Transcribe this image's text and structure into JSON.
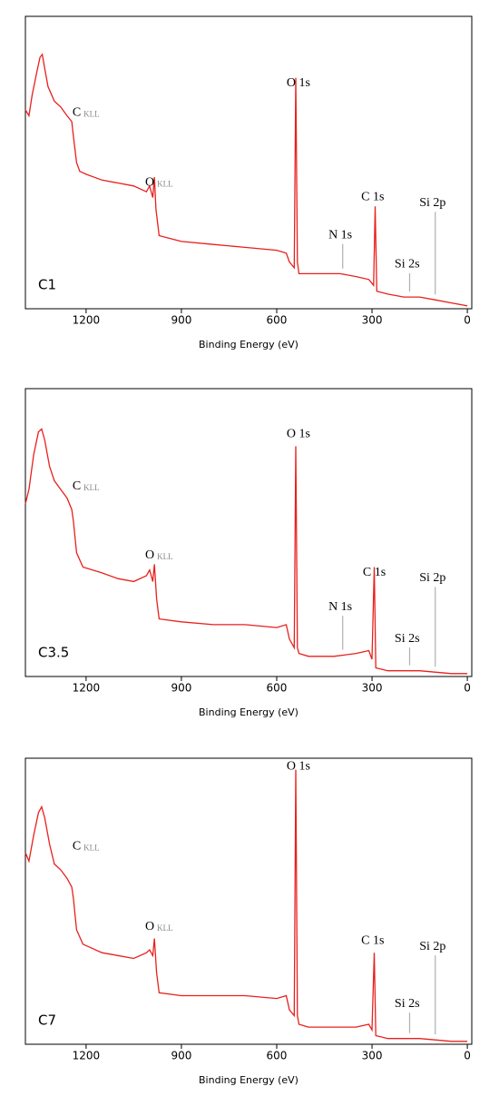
{
  "chart_data": [
    {
      "type": "line",
      "sample": "C1",
      "xlabel": "Binding Energy (eV)",
      "xlim": [
        1391,
        -14
      ],
      "ylim": [
        0,
        100
      ],
      "xticks": [
        1200,
        900,
        600,
        300,
        0
      ],
      "color": "#e8201c",
      "x": [
        1391,
        1380,
        1370,
        1355,
        1345,
        1338,
        1330,
        1320,
        1300,
        1280,
        1260,
        1245,
        1240,
        1230,
        1220,
        1200,
        1150,
        1100,
        1050,
        1010,
        1000,
        990,
        985,
        980,
        970,
        900,
        800,
        700,
        600,
        570,
        560,
        545,
        540,
        535,
        530,
        500,
        420,
        400,
        350,
        310,
        295,
        290,
        285,
        250,
        200,
        150,
        100,
        50,
        0
      ],
      "values": [
        68,
        66,
        73,
        81,
        86,
        87,
        82,
        76,
        71,
        69,
        66,
        64,
        59,
        50,
        47,
        46,
        44,
        43,
        42,
        40,
        42,
        38,
        45,
        34,
        25,
        23,
        22,
        21,
        20,
        19,
        16,
        14,
        79,
        16,
        12,
        12,
        12,
        12,
        11,
        10,
        8,
        35,
        6,
        5,
        4,
        4,
        3,
        2,
        1
      ],
      "annotations": [
        {
          "text": "O 1s",
          "x": 569,
          "y": 77
        },
        {
          "text": "C",
          "sub": "KLL",
          "x": 1243,
          "y": 67
        },
        {
          "text": "O",
          "sub": "KLL",
          "x": 1014,
          "y": 43
        },
        {
          "text": "C 1s",
          "x": 334,
          "y": 38
        },
        {
          "text": "N 1s",
          "x": 437,
          "y": 25,
          "leader": true
        },
        {
          "text": "Si 2s",
          "x": 229,
          "y": 15,
          "leader": true
        },
        {
          "text": "Si 2p",
          "x": 151,
          "y": 36,
          "leader": true
        }
      ]
    },
    {
      "type": "line",
      "sample": "C3.5",
      "xlabel": "Binding Energy (eV)",
      "xlim": [
        1391,
        -14
      ],
      "ylim": [
        0,
        100
      ],
      "xticks": [
        1200,
        900,
        600,
        300,
        0
      ],
      "color": "#e8201c",
      "x": [
        1391,
        1380,
        1365,
        1350,
        1340,
        1330,
        1315,
        1300,
        1280,
        1260,
        1245,
        1240,
        1230,
        1210,
        1150,
        1100,
        1050,
        1010,
        1000,
        990,
        985,
        978,
        970,
        900,
        800,
        700,
        600,
        570,
        560,
        545,
        540,
        535,
        530,
        500,
        420,
        350,
        310,
        300,
        293,
        288,
        250,
        150,
        50,
        0
      ],
      "values": [
        60,
        65,
        77,
        85,
        86,
        82,
        73,
        68,
        65,
        62,
        58,
        54,
        43,
        38,
        36,
        34,
        33,
        35,
        37,
        33,
        39,
        27,
        20,
        19,
        18,
        18,
        17,
        18,
        13,
        10,
        80,
        10,
        8,
        7,
        7,
        8,
        9,
        6,
        38,
        3,
        2,
        2,
        1,
        1
      ],
      "annotations": [
        {
          "text": "O 1s",
          "x": 569,
          "y": 84
        },
        {
          "text": "C",
          "sub": "KLL",
          "x": 1243,
          "y": 66
        },
        {
          "text": "O",
          "sub": "KLL",
          "x": 1014,
          "y": 42
        },
        {
          "text": "C 1s",
          "x": 329,
          "y": 36
        },
        {
          "text": "N 1s",
          "x": 437,
          "y": 24,
          "leader": true
        },
        {
          "text": "Si 2s",
          "x": 229,
          "y": 13,
          "leader": true
        },
        {
          "text": "Si 2p",
          "x": 151,
          "y": 34,
          "leader": true
        }
      ]
    },
    {
      "type": "line",
      "sample": "C7",
      "xlabel": "Binding Energy (eV)",
      "xlim": [
        1391,
        -14
      ],
      "ylim": [
        0,
        100
      ],
      "xticks": [
        1200,
        900,
        600,
        300,
        0
      ],
      "color": "#e8201c",
      "x": [
        1391,
        1380,
        1365,
        1350,
        1340,
        1330,
        1315,
        1300,
        1280,
        1260,
        1245,
        1240,
        1230,
        1210,
        1150,
        1100,
        1050,
        1010,
        1000,
        990,
        985,
        978,
        970,
        900,
        800,
        700,
        600,
        570,
        560,
        545,
        540,
        535,
        530,
        500,
        420,
        350,
        310,
        300,
        293,
        288,
        250,
        150,
        50,
        0
      ],
      "values": [
        67,
        64,
        73,
        81,
        83,
        79,
        70,
        63,
        61,
        58,
        55,
        51,
        40,
        35,
        32,
        31,
        30,
        32,
        33,
        31,
        37,
        25,
        18,
        17,
        17,
        17,
        16,
        17,
        12,
        10,
        96,
        10,
        7,
        6,
        6,
        6,
        7,
        5,
        32,
        3,
        2,
        2,
        1,
        1
      ],
      "annotations": [
        {
          "text": "O 1s",
          "x": 569,
          "y": 97
        },
        {
          "text": "C",
          "sub": "KLL",
          "x": 1243,
          "y": 69
        },
        {
          "text": "O",
          "sub": "KLL",
          "x": 1014,
          "y": 41
        },
        {
          "text": "C 1s",
          "x": 334,
          "y": 36
        },
        {
          "text": "Si 2s",
          "x": 229,
          "y": 14,
          "leader": true
        },
        {
          "text": "Si 2p",
          "x": 151,
          "y": 34,
          "leader": true
        }
      ]
    }
  ]
}
